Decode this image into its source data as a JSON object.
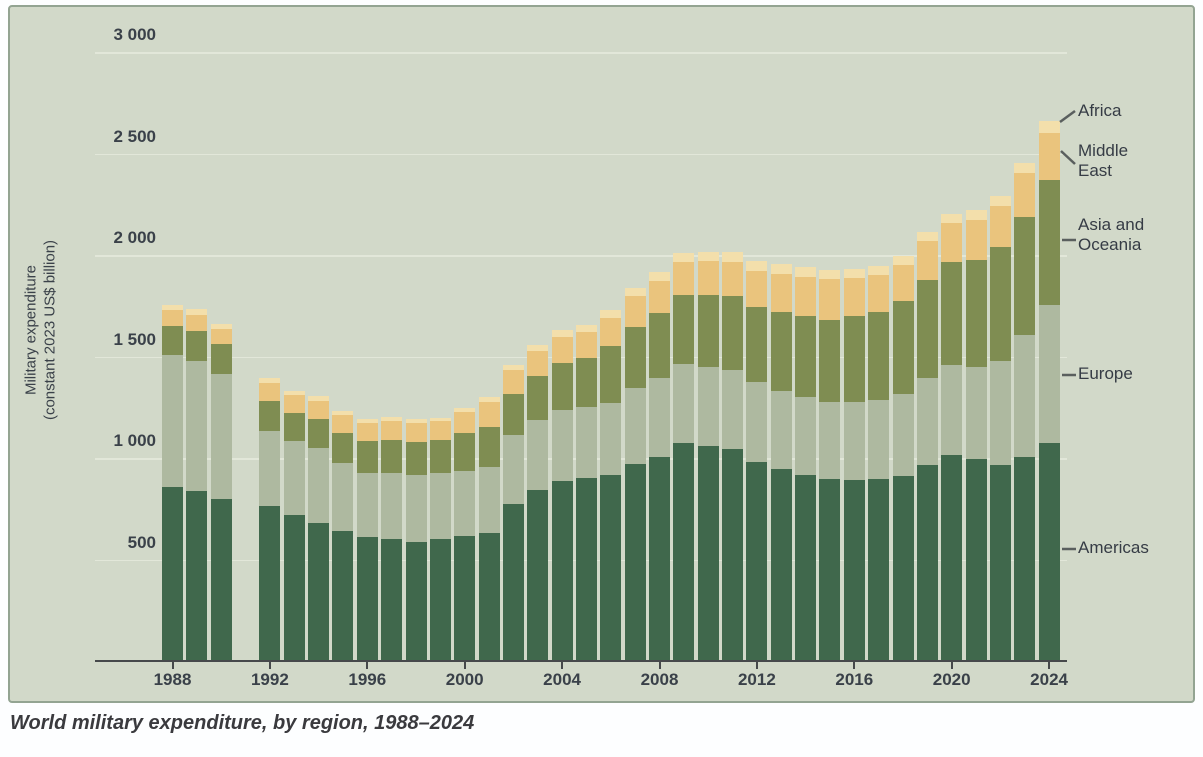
{
  "caption": "World military expenditure, by region, 1988–2024",
  "chart_data": {
    "type": "bar",
    "stacked": true,
    "title": "",
    "caption": "World military expenditure, by region, 1988–2024",
    "y_axis": {
      "label_line1": "Military expenditure",
      "label_line2": "(constant 2023 US$ billion)",
      "ticks": [
        "3 000",
        "2 500",
        "2 000",
        "1 500",
        "1 000",
        "500"
      ],
      "tick_values": [
        3000,
        2500,
        2000,
        1500,
        1000,
        500
      ],
      "ylim": [
        0,
        3000
      ],
      "grid": true
    },
    "x_axis": {
      "tick_years": [
        1988,
        1992,
        1996,
        2000,
        2004,
        2008,
        2012,
        2016,
        2020,
        2024
      ]
    },
    "years": [
      1988,
      1989,
      1990,
      1991,
      1992,
      1993,
      1994,
      1995,
      1996,
      1997,
      1998,
      1999,
      2000,
      2001,
      2002,
      2003,
      2004,
      2005,
      2006,
      2007,
      2008,
      2009,
      2010,
      2011,
      2012,
      2013,
      2014,
      2015,
      2016,
      2017,
      2018,
      2019,
      2020,
      2021,
      2022,
      2023,
      2024
    ],
    "missing_years": [
      1991
    ],
    "series": [
      {
        "name": "Americas",
        "color": "#40684c",
        "values": [
          860,
          840,
          800,
          null,
          765,
          720,
          685,
          645,
          615,
          605,
          590,
          605,
          620,
          635,
          775,
          845,
          890,
          905,
          920,
          975,
          1010,
          1075,
          1060,
          1045,
          985,
          950,
          920,
          900,
          895,
          900,
          915,
          970,
          1020,
          1000,
          970,
          1010,
          1075
        ]
      },
      {
        "name": "Europe",
        "color": "#aeb9a0",
        "values": [
          650,
          640,
          615,
          null,
          370,
          365,
          365,
          335,
          315,
          325,
          330,
          325,
          320,
          325,
          340,
          345,
          350,
          350,
          355,
          375,
          385,
          390,
          390,
          390,
          390,
          385,
          385,
          380,
          385,
          390,
          405,
          425,
          440,
          450,
          510,
          600,
          680
        ]
      },
      {
        "name": "Asia and Oceania",
        "color": "#7f8d52",
        "values": [
          145,
          150,
          150,
          null,
          150,
          140,
          145,
          145,
          155,
          160,
          160,
          160,
          185,
          195,
          205,
          215,
          230,
          240,
          280,
          300,
          320,
          340,
          355,
          365,
          370,
          385,
          395,
          405,
          420,
          430,
          455,
          485,
          510,
          530,
          560,
          580,
          615
        ]
      },
      {
        "name": "Middle East",
        "color": "#eac47d",
        "values": [
          75,
          78,
          75,
          null,
          88,
          87,
          90,
          90,
          90,
          95,
          95,
          93,
          105,
          125,
          115,
          125,
          130,
          130,
          140,
          150,
          160,
          165,
          168,
          170,
          180,
          190,
          195,
          200,
          190,
          185,
          180,
          190,
          190,
          195,
          205,
          215,
          235
        ]
      },
      {
        "name": "Africa",
        "color": "#f3dfab",
        "values": [
          25,
          25,
          22,
          null,
          19,
          18,
          20,
          17,
          16,
          17,
          16,
          16,
          18,
          20,
          25,
          28,
          31,
          31,
          34,
          38,
          40,
          42,
          44,
          45,
          45,
          45,
          45,
          42,
          40,
          40,
          42,
          44,
          44,
          45,
          46,
          50,
          55
        ]
      }
    ],
    "legend": [
      {
        "label": "Africa"
      },
      {
        "label": "Middle East"
      },
      {
        "label": "Asia and Oceania"
      },
      {
        "label": "Europe"
      },
      {
        "label": "Americas"
      }
    ],
    "legend_position": "right"
  }
}
